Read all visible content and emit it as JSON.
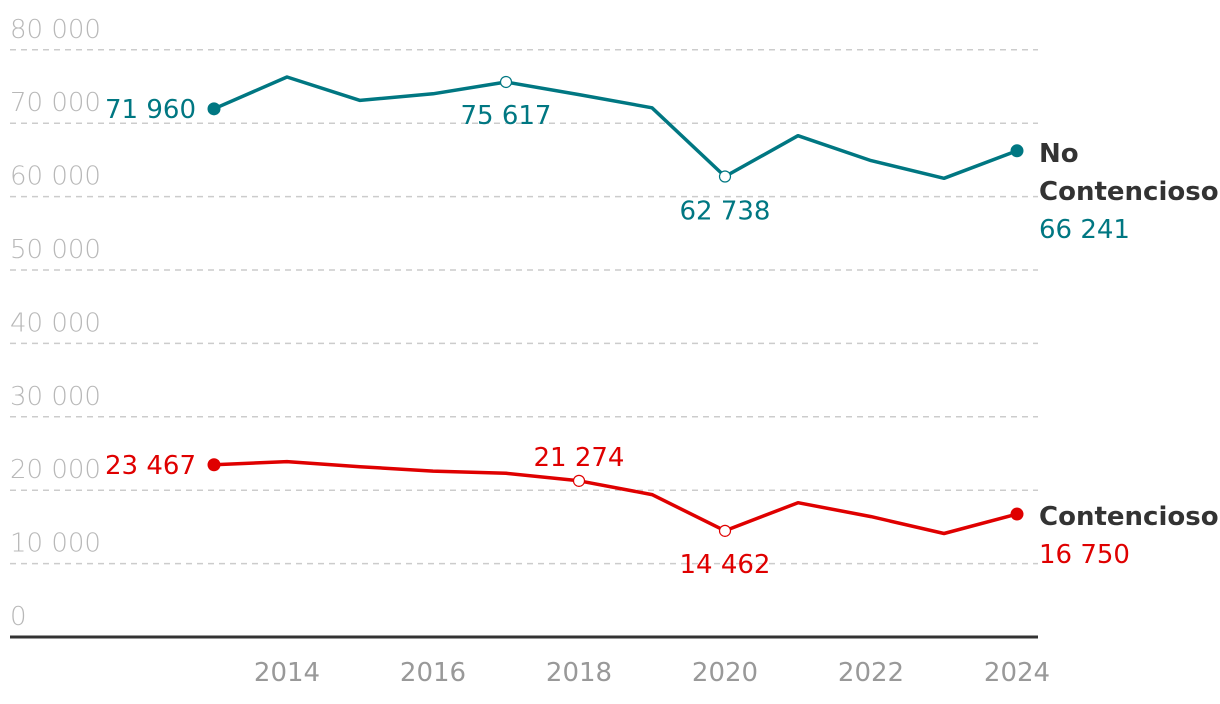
{
  "chart_data": {
    "type": "line",
    "title": "",
    "xlabel": "",
    "ylabel": "",
    "x": [
      2013,
      2014,
      2015,
      2016,
      2017,
      2018,
      2019,
      2020,
      2021,
      2022,
      2023,
      2024
    ],
    "xticks": [
      2014,
      2016,
      2018,
      2020,
      2022,
      2024
    ],
    "xtick_labels": [
      "2014",
      "2016",
      "2018",
      "2020",
      "2022",
      "2024"
    ],
    "ylim": [
      0,
      80000
    ],
    "yticks": [
      0,
      10000,
      20000,
      30000,
      40000,
      50000,
      60000,
      70000,
      80000
    ],
    "ytick_labels": [
      "0",
      "10 000",
      "20 000",
      "30 000",
      "40 000",
      "50 000",
      "60 000",
      "70 000",
      "80 000"
    ],
    "grid": true,
    "series": [
      {
        "id": "no-contencioso",
        "name_lines": [
          "No",
          "Contencioso"
        ],
        "color": "#007782",
        "values": [
          71960,
          76300,
          73100,
          74000,
          75617,
          73900,
          72100,
          62738,
          68300,
          64900,
          62500,
          66241
        ],
        "annotations": [
          {
            "index": 0,
            "label": "71 960",
            "marker": "filled"
          },
          {
            "index": 4,
            "label": "75 617",
            "marker": "hollow"
          },
          {
            "index": 7,
            "label": "62 738",
            "marker": "hollow"
          },
          {
            "index": 11,
            "label": "66 241",
            "marker": "filled"
          }
        ]
      },
      {
        "id": "contencioso",
        "name_lines": [
          "Contencioso"
        ],
        "color": "#df0000",
        "values": [
          23467,
          23900,
          23200,
          22600,
          22300,
          21274,
          19400,
          14462,
          18300,
          16400,
          14100,
          16750
        ],
        "annotations": [
          {
            "index": 0,
            "label": "23 467",
            "marker": "filled"
          },
          {
            "index": 5,
            "label": "21 274",
            "marker": "hollow"
          },
          {
            "index": 7,
            "label": "14 462",
            "marker": "hollow"
          },
          {
            "index": 11,
            "label": "16 750",
            "marker": "filled"
          }
        ]
      }
    ]
  }
}
